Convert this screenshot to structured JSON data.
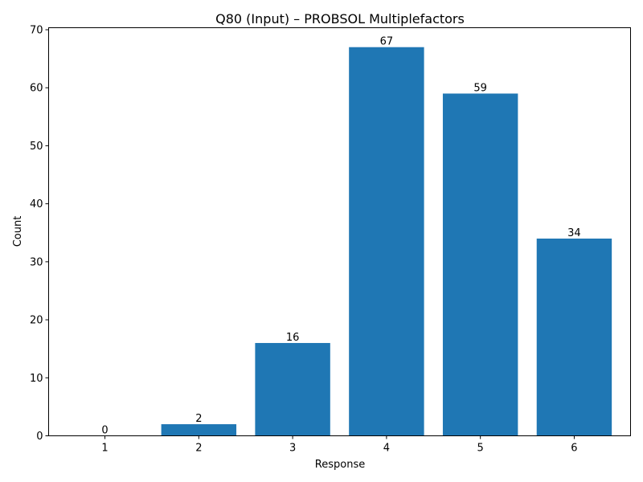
{
  "chart_data": {
    "type": "bar",
    "title": "Q80 (Input) – PROBSOL Multiplefactors",
    "xlabel": "Response",
    "ylabel": "Count",
    "categories": [
      "1",
      "2",
      "3",
      "4",
      "5",
      "6"
    ],
    "values": [
      0,
      2,
      16,
      67,
      59,
      34
    ],
    "data_labels": [
      "0",
      "2",
      "16",
      "67",
      "59",
      "34"
    ],
    "ylim": [
      0,
      70.35
    ],
    "yticks": [
      0,
      10,
      20,
      30,
      40,
      50,
      60,
      70
    ],
    "ytick_labels": [
      "0",
      "10",
      "20",
      "30",
      "40",
      "50",
      "60",
      "70"
    ],
    "grid": false,
    "legend": "none",
    "bar_color": "#1f77b4"
  }
}
